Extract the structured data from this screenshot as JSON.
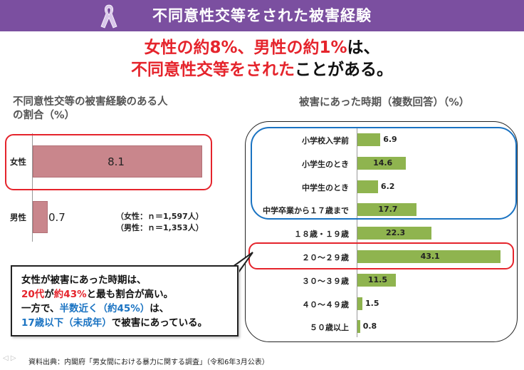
{
  "header": {
    "title": "不同意性交等をされた被害経験",
    "icon": "awareness-ribbon-icon"
  },
  "headline": {
    "line1_red": "女性の約8%、男性の約1%",
    "line1_tail": "は、",
    "line2_red": "不同意性交等をされた",
    "line2_tail": "ことがある。"
  },
  "left_chart_title_line1": "不同意性交等の被害経験のある人",
  "left_chart_title_line2": "の割合（%）",
  "sample_note_female": "（女性：ｎ＝1,597人）",
  "sample_note_male": "（男性：ｎ＝1,353人）",
  "right_chart_title": "被害にあった時期（複数回答）（%）",
  "callout": {
    "l1": "女性が被害にあった時期は、",
    "l2a": "20代",
    "l2b": "が",
    "l2c": "約43%",
    "l2d": "と最も割合が高い。",
    "l3a": "一方で、",
    "l3b": "半数近く（約45%）",
    "l3c": "は、",
    "l4a": "17歳以下（未成年）",
    "l4b": "で被害にあっている。"
  },
  "footer": "資料出典：内閣府「男女間における暴力に関する調査」（令和6年3月公表）",
  "colors": {
    "header": "#7b4fa0",
    "accent_red": "#e5242c",
    "accent_blue": "#1a73c2",
    "left_bar": "#c9868c",
    "right_bar": "#8fb44f"
  },
  "chart_data": [
    {
      "type": "bar",
      "orientation": "horizontal",
      "title": "不同意性交等の被害経験のある人の割合（%）",
      "categories": [
        "女性",
        "男性"
      ],
      "values": [
        8.1,
        0.7
      ],
      "xlim": [
        0,
        8.5
      ]
    },
    {
      "type": "bar",
      "orientation": "horizontal",
      "title": "被害にあった時期（複数回答）（%）",
      "categories": [
        "小学校入学前",
        "小学生のとき",
        "中学生のとき",
        "中学卒業から１７歳まで",
        "１８歳・１９歳",
        "２０～２９歳",
        "３０～３９歳",
        "４０～４９歳",
        "５０歳以上"
      ],
      "values": [
        6.9,
        14.6,
        6.2,
        17.7,
        22.3,
        43.1,
        11.5,
        1.5,
        0.8
      ],
      "xlim": [
        0,
        45
      ]
    }
  ]
}
